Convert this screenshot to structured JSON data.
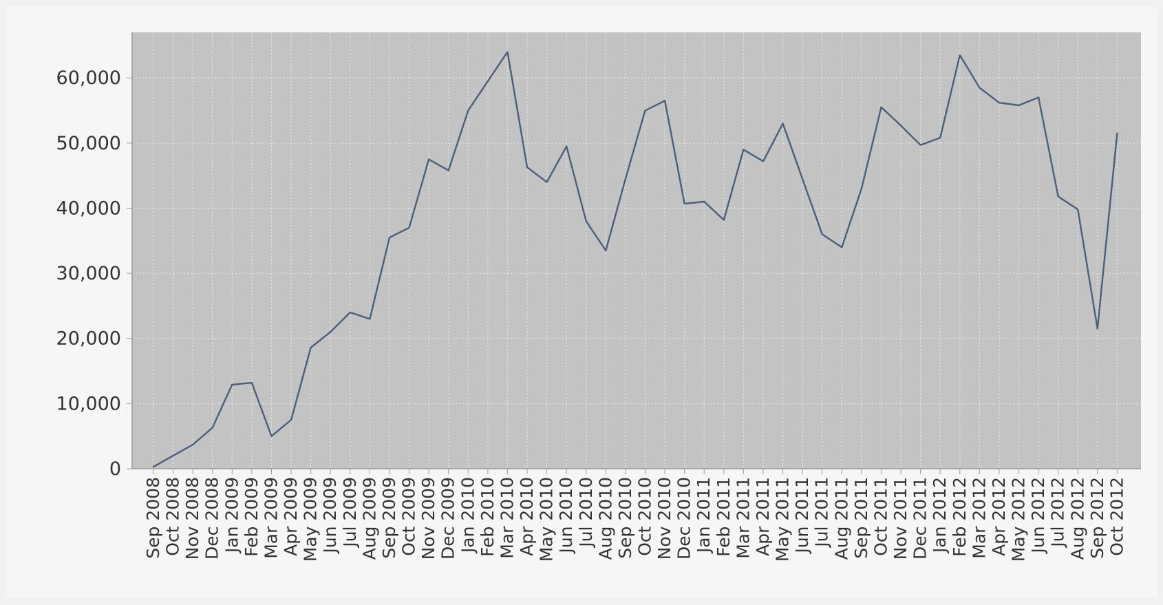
{
  "chart_data": {
    "type": "line",
    "title": "",
    "xlabel": "",
    "ylabel": "",
    "ylim": [
      0,
      67000
    ],
    "yticks": [
      0,
      10000,
      20000,
      30000,
      40000,
      50000,
      60000
    ],
    "ytick_labels": [
      "0",
      "10,000",
      "20,000",
      "30,000",
      "40,000",
      "50,000",
      "60,000"
    ],
    "grid": true,
    "legend": "none",
    "colors": {
      "page_bg": "#f1f1f1",
      "plot_bg": "#c3c3c3",
      "grid": "#e6e6e6",
      "axis": "#9a9a9a",
      "line": "#4a5f7a"
    },
    "categories": [
      "Sep 2008",
      "Oct 2008",
      "Nov 2008",
      "Dec 2008",
      "Jan 2009",
      "Feb 2009",
      "Mar 2009",
      "Apr 2009",
      "May 2009",
      "Jun 2009",
      "Jul 2009",
      "Aug 2009",
      "Sep 2009",
      "Oct 2009",
      "Nov 2009",
      "Dec 2009",
      "Jan 2010",
      "Feb 2010",
      "Mar 2010",
      "Apr 2010",
      "May 2010",
      "Jun 2010",
      "Jul 2010",
      "Aug 2010",
      "Sep 2010",
      "Oct 2010",
      "Nov 2010",
      "Dec 2010",
      "Jan 2011",
      "Feb 2011",
      "Mar 2011",
      "Apr 2011",
      "May 2011",
      "Jun 2011",
      "Jul 2011",
      "Aug 2011",
      "Sep 2011",
      "Oct 2011",
      "Nov 2011",
      "Dec 2011",
      "Jan 2012",
      "Feb 2012",
      "Mar 2012",
      "Apr 2012",
      "May 2012",
      "Jun 2012",
      "Jul 2012",
      "Aug 2012",
      "Sep 2012",
      "Oct 2012"
    ],
    "series": [
      {
        "values": [
          300,
          2000,
          3700,
          6300,
          12900,
          13200,
          5000,
          7500,
          18600,
          21000,
          24000,
          23000,
          35500,
          37000,
          47500,
          45800,
          55000,
          59500,
          64000,
          46300,
          44000,
          49500,
          38000,
          33500,
          44500,
          55000,
          56500,
          40700,
          41000,
          38200,
          49000,
          47200,
          53000,
          44500,
          36000,
          34000,
          43000,
          55500,
          52700,
          49700,
          50800,
          63500,
          58500,
          56200,
          55800,
          57000,
          41800,
          39800,
          21500,
          51500
        ]
      }
    ]
  }
}
